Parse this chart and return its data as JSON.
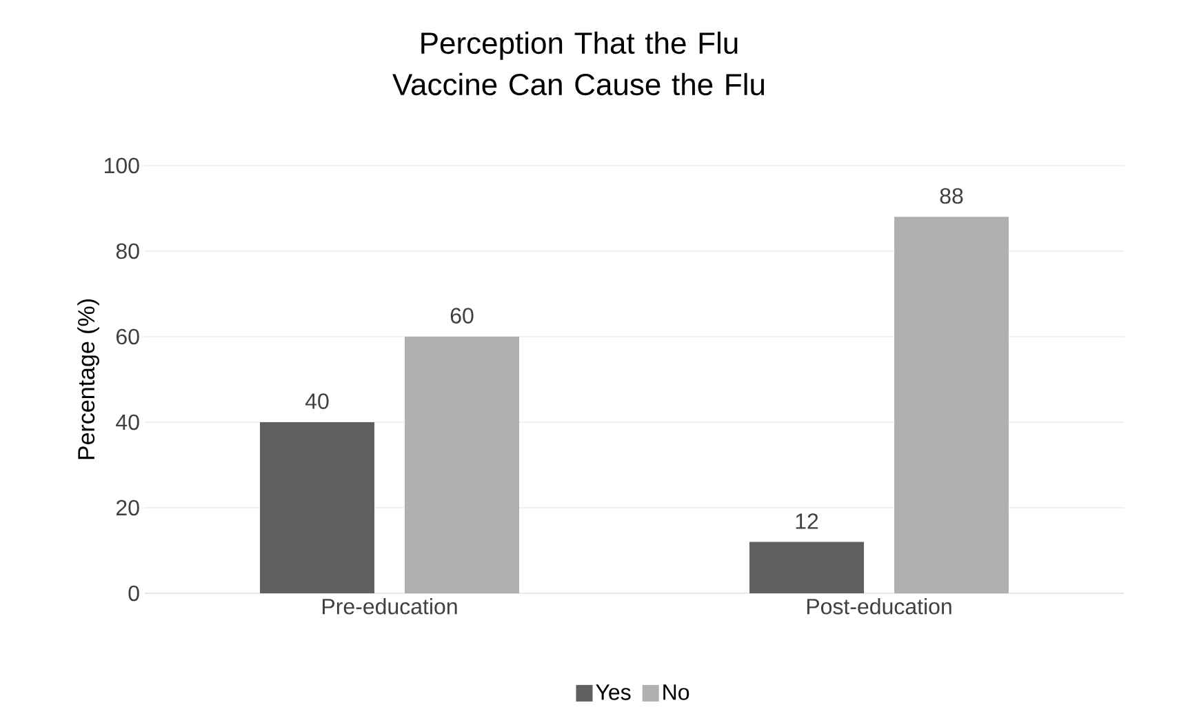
{
  "chart_data": {
    "type": "bar",
    "title": "Perception That the Flu Vaccine Can Cause the Flu",
    "ylabel": "Percentage (%)",
    "categories": [
      "Pre-education",
      "Post-education"
    ],
    "series": [
      {
        "name": "Yes",
        "color": "#5f5f5f",
        "values": [
          40,
          12
        ]
      },
      {
        "name": "No",
        "color": "#b0b0b0",
        "values": [
          60,
          88
        ]
      }
    ],
    "ylim": [
      0,
      100
    ],
    "yticks": [
      0,
      20,
      40,
      60,
      80,
      100
    ],
    "grid": "y",
    "legend": "bottom",
    "data_labels": true
  }
}
